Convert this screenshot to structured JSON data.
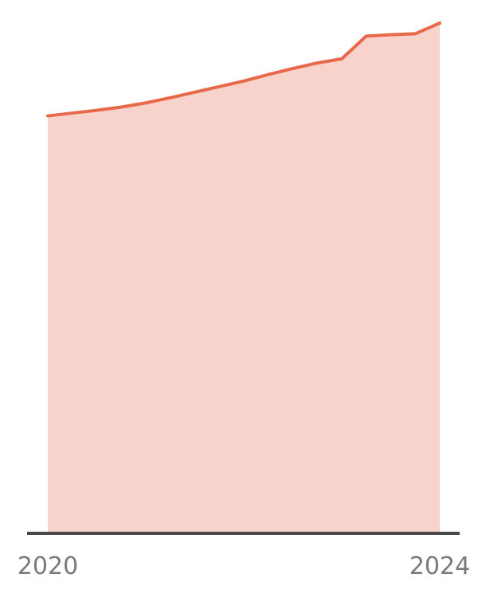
{
  "chart_data": {
    "type": "area",
    "x": [
      "2020-01",
      "2020-04",
      "2020-07",
      "2020-10",
      "2021-01",
      "2021-04",
      "2021-07",
      "2021-10",
      "2022-01",
      "2022-04",
      "2022-07",
      "2022-10",
      "2023-01",
      "2023-04",
      "2023-07",
      "2023-10",
      "2024-01"
    ],
    "values": [
      90,
      90.6,
      91.2,
      91.9,
      92.8,
      93.9,
      95.1,
      96.3,
      97.5,
      98.9,
      100.2,
      101.4,
      102.3,
      107.2,
      107.5,
      107.7,
      110
    ],
    "x_ticks": [
      "2020",
      "2024"
    ],
    "ylim": [
      0,
      110
    ],
    "grid": false,
    "colors": {
      "line": "#E8694A",
      "fill": "#F8D3CB",
      "axis": "#4a4a4a",
      "tick_text": "#7a7a7a"
    }
  }
}
